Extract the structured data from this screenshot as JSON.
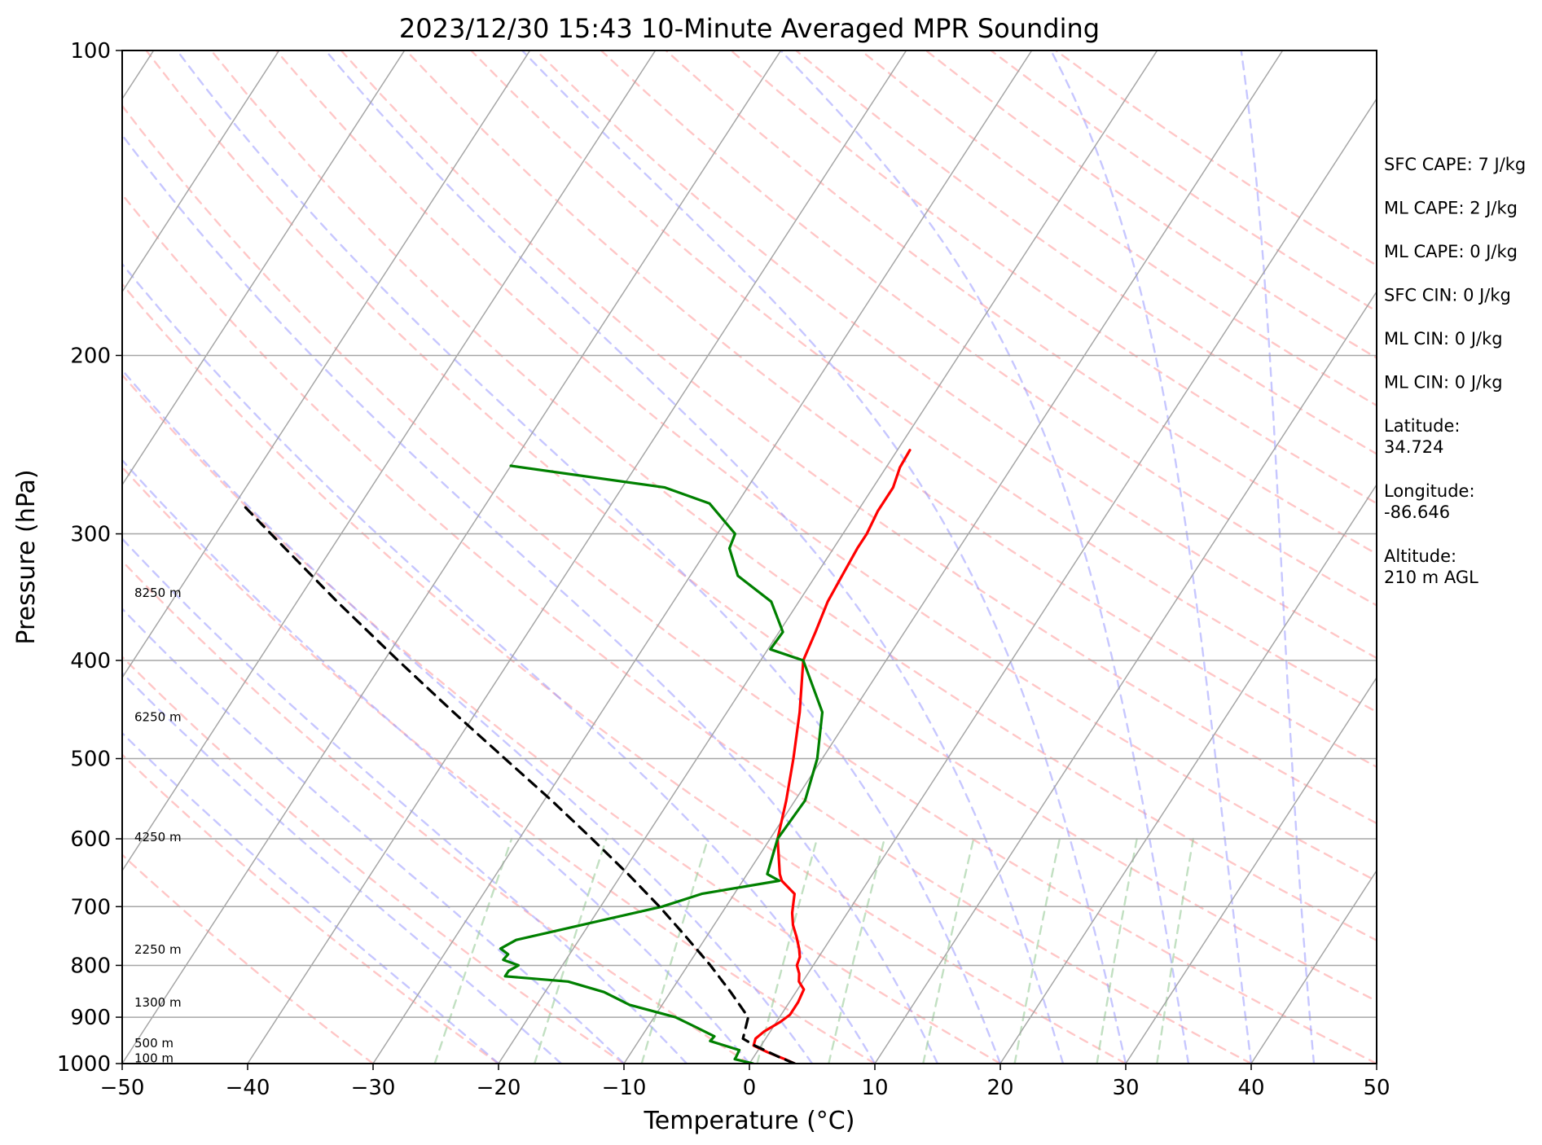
{
  "chart_data": {
    "type": "line",
    "title": "2023/12/30 15:43 10-Minute Averaged MPR Sounding",
    "xlabel": "Temperature (°C)",
    "ylabel": "Pressure (hPa)",
    "xlim": [
      -50,
      50
    ],
    "ylim": [
      1000,
      100
    ],
    "y_scale": "log",
    "x_ticks": [
      -50,
      -40,
      -30,
      -20,
      -10,
      0,
      10,
      20,
      30,
      40,
      50
    ],
    "x_tick_labels": [
      "−50",
      "−40",
      "−30",
      "−20",
      "−10",
      "0",
      "10",
      "20",
      "30",
      "40",
      "50"
    ],
    "y_ticks": [
      100,
      200,
      300,
      400,
      500,
      600,
      700,
      800,
      900,
      1000
    ],
    "y_tick_labels": [
      "100",
      "200",
      "300",
      "400",
      "500",
      "600",
      "700",
      "800",
      "900",
      "1000"
    ],
    "grid": true,
    "colors": {
      "temperature": "#ff0000",
      "dewpoint": "#008000",
      "parcel": "#000000",
      "isotherm": "#a6a6a6",
      "dry_adiabat": "#ff9999",
      "moist_adiabat": "#9999ff",
      "mixing_ratio": "#99cc99"
    },
    "series": [
      {
        "key": "temperature",
        "style": "solid",
        "points": [
          [
            1000,
            3.6
          ],
          [
            990,
            2.6
          ],
          [
            975,
            0.9
          ],
          [
            960,
            -0.6
          ],
          [
            945,
            -0.8
          ],
          [
            930,
            -0.5
          ],
          [
            910,
            0.3
          ],
          [
            895,
            0.7
          ],
          [
            870,
            0.7
          ],
          [
            845,
            0.5
          ],
          [
            830,
            -0.3
          ],
          [
            815,
            -0.7
          ],
          [
            800,
            -1.3
          ],
          [
            785,
            -1.5
          ],
          [
            770,
            -2.0
          ],
          [
            750,
            -2.8
          ],
          [
            730,
            -3.7
          ],
          [
            710,
            -4.4
          ],
          [
            695,
            -4.8
          ],
          [
            680,
            -5.2
          ],
          [
            660,
            -6.9
          ],
          [
            650,
            -7.4
          ],
          [
            600,
            -9.4
          ],
          [
            550,
            -10.7
          ],
          [
            500,
            -12.3
          ],
          [
            450,
            -14.2
          ],
          [
            400,
            -16.6
          ],
          [
            375,
            -17.1
          ],
          [
            350,
            -17.7
          ],
          [
            330,
            -17.9
          ],
          [
            310,
            -18.1
          ],
          [
            300,
            -18.1
          ],
          [
            285,
            -18.4
          ],
          [
            270,
            -18.4
          ],
          [
            258,
            -18.9
          ],
          [
            248,
            -19.0
          ]
        ]
      },
      {
        "key": "dewpoint",
        "style": "solid",
        "points": [
          [
            1000,
            0.3
          ],
          [
            990,
            -1.4
          ],
          [
            985,
            -1.4
          ],
          [
            970,
            -1.5
          ],
          [
            950,
            -4.3
          ],
          [
            940,
            -4.2
          ],
          [
            920,
            -6.2
          ],
          [
            900,
            -8.3
          ],
          [
            875,
            -12.6
          ],
          [
            850,
            -15.3
          ],
          [
            830,
            -18.7
          ],
          [
            820,
            -24.0
          ],
          [
            810,
            -24.0
          ],
          [
            800,
            -23.5
          ],
          [
            790,
            -25.0
          ],
          [
            780,
            -24.9
          ],
          [
            770,
            -25.8
          ],
          [
            755,
            -25.0
          ],
          [
            700,
            -15.1
          ],
          [
            680,
            -12.6
          ],
          [
            660,
            -7.1
          ],
          [
            650,
            -8.4
          ],
          [
            600,
            -9.4
          ],
          [
            550,
            -9.2
          ],
          [
            500,
            -10.4
          ],
          [
            450,
            -12.4
          ],
          [
            400,
            -16.6
          ],
          [
            390,
            -19.8
          ],
          [
            375,
            -19.7
          ],
          [
            350,
            -22.2
          ],
          [
            330,
            -26.2
          ],
          [
            310,
            -28.3
          ],
          [
            300,
            -28.6
          ],
          [
            280,
            -32.2
          ],
          [
            270,
            -36.6
          ],
          [
            257,
            -50.0
          ]
        ]
      },
      {
        "key": "parcel",
        "style": "dashed",
        "points": [
          [
            1000,
            3.6
          ],
          [
            985,
            2.0
          ],
          [
            960,
            -0.5
          ],
          [
            945,
            -1.8
          ],
          [
            900,
            -2.5
          ],
          [
            850,
            -5.2
          ],
          [
            800,
            -8.2
          ],
          [
            750,
            -11.6
          ],
          [
            700,
            -15.3
          ],
          [
            650,
            -19.5
          ],
          [
            600,
            -24.2
          ],
          [
            550,
            -29.4
          ],
          [
            500,
            -35.3
          ],
          [
            450,
            -41.8
          ],
          [
            400,
            -48.9
          ],
          [
            350,
            -56.8
          ],
          [
            300,
            -65.6
          ],
          [
            280,
            -69.5
          ]
        ]
      }
    ],
    "height_labels": [
      {
        "label": "100 m",
        "p": 988
      },
      {
        "label": "500 m",
        "p": 955
      },
      {
        "label": "1300 m",
        "p": 870
      },
      {
        "label": "2250 m",
        "p": 772
      },
      {
        "label": "4250 m",
        "p": 598
      },
      {
        "label": "6250 m",
        "p": 455
      },
      {
        "label": "8250 m",
        "p": 343
      }
    ],
    "annotations": [
      "SFC CAPE: 7 J/kg",
      "ML CAPE: 2 J/kg",
      "ML CAPE: 0 J/kg",
      "SFC CIN: 0 J/kg",
      "ML CIN: 0 J/kg",
      "ML CIN: 0 J/kg",
      "Latitude:\n34.724",
      "Longitude:\n-86.646",
      "Altitude:\n210 m AGL"
    ]
  }
}
